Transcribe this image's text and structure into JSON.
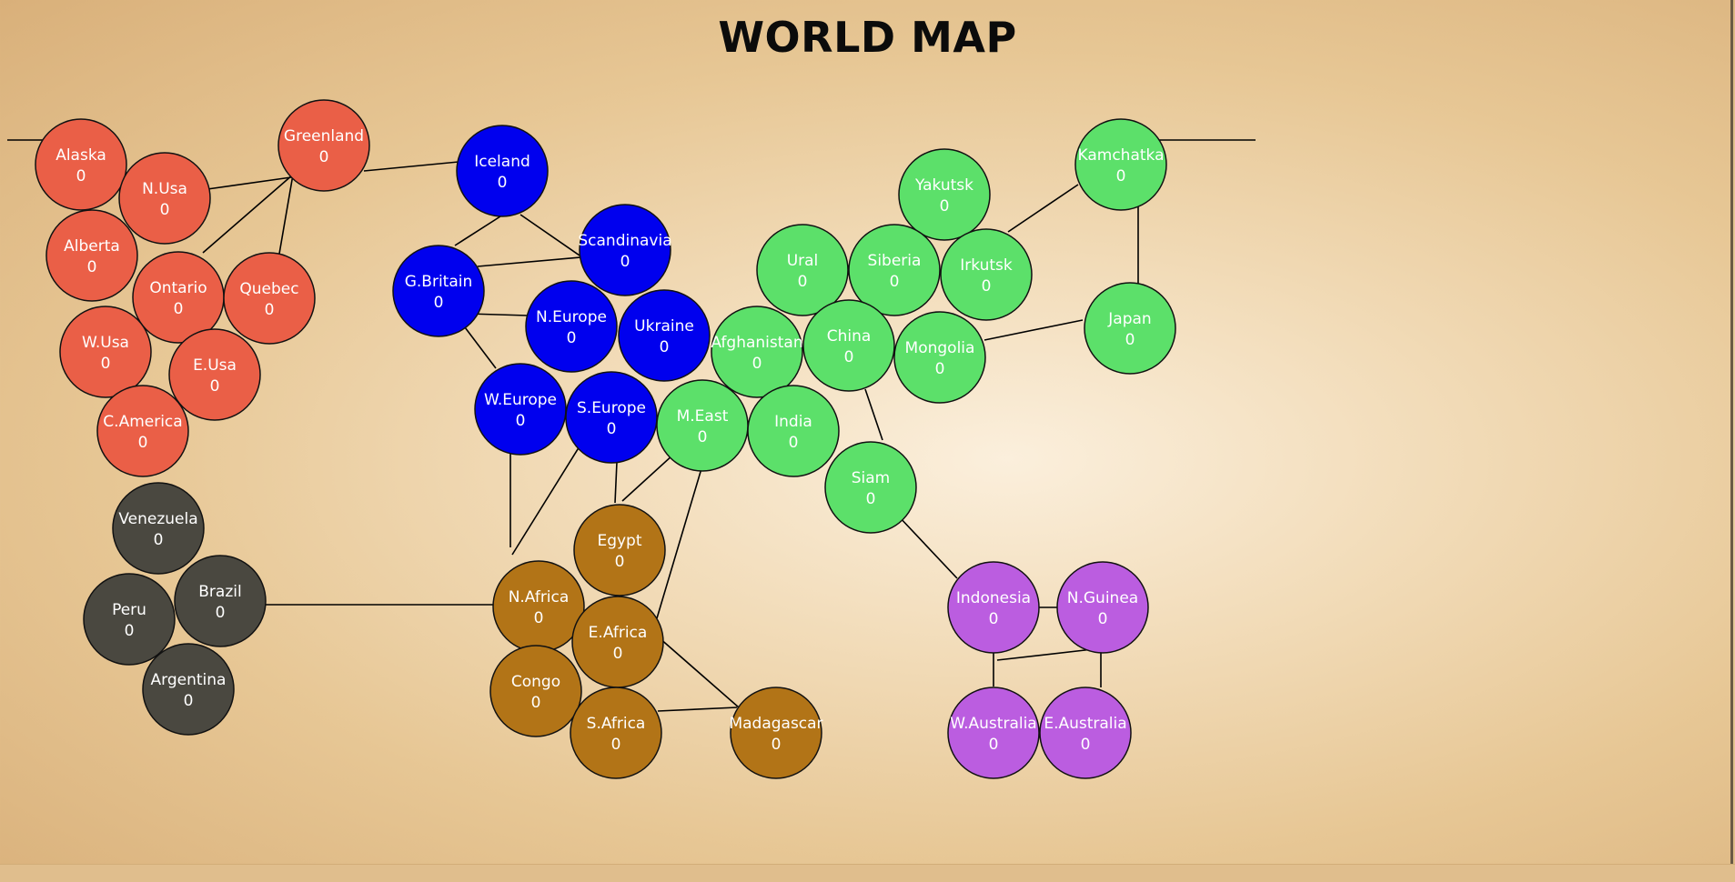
{
  "title": "WORLD MAP",
  "colors": {
    "north_america": "#ea5f47",
    "europe": "#0000ee",
    "asia": "#5ce06a",
    "south_america": "#4a4840",
    "africa": "#b27417",
    "oceania": "#bb5de0",
    "connection": "#000000",
    "label": "#ffffff"
  },
  "territories": [
    {
      "name": "Alaska",
      "armies": 0,
      "continent": "north_america"
    },
    {
      "name": "N.Usa",
      "armies": 0,
      "continent": "north_america"
    },
    {
      "name": "Greenland",
      "armies": 0,
      "continent": "north_america"
    },
    {
      "name": "Alberta",
      "armies": 0,
      "continent": "north_america"
    },
    {
      "name": "Ontario",
      "armies": 0,
      "continent": "north_america"
    },
    {
      "name": "Quebec",
      "armies": 0,
      "continent": "north_america"
    },
    {
      "name": "W.Usa",
      "armies": 0,
      "continent": "north_america"
    },
    {
      "name": "E.Usa",
      "armies": 0,
      "continent": "north_america"
    },
    {
      "name": "C.America",
      "armies": 0,
      "continent": "north_america"
    },
    {
      "name": "Iceland",
      "armies": 0,
      "continent": "europe"
    },
    {
      "name": "Scandinavia",
      "armies": 0,
      "continent": "europe"
    },
    {
      "name": "G.Britain",
      "armies": 0,
      "continent": "europe"
    },
    {
      "name": "N.Europe",
      "armies": 0,
      "continent": "europe"
    },
    {
      "name": "Ukraine",
      "armies": 0,
      "continent": "europe"
    },
    {
      "name": "W.Europe",
      "armies": 0,
      "continent": "europe"
    },
    {
      "name": "S.Europe",
      "armies": 0,
      "continent": "europe"
    },
    {
      "name": "Yakutsk",
      "armies": 0,
      "continent": "asia"
    },
    {
      "name": "Kamchatka",
      "armies": 0,
      "continent": "asia"
    },
    {
      "name": "Ural",
      "armies": 0,
      "continent": "asia"
    },
    {
      "name": "Siberia",
      "armies": 0,
      "continent": "asia"
    },
    {
      "name": "Irkutsk",
      "armies": 0,
      "continent": "asia"
    },
    {
      "name": "Afghanistan",
      "armies": 0,
      "continent": "asia"
    },
    {
      "name": "China",
      "armies": 0,
      "continent": "asia"
    },
    {
      "name": "Mongolia",
      "armies": 0,
      "continent": "asia"
    },
    {
      "name": "Japan",
      "armies": 0,
      "continent": "asia"
    },
    {
      "name": "M.East",
      "armies": 0,
      "continent": "asia"
    },
    {
      "name": "India",
      "armies": 0,
      "continent": "asia"
    },
    {
      "name": "Siam",
      "armies": 0,
      "continent": "asia"
    },
    {
      "name": "Venezuela",
      "armies": 0,
      "continent": "south_america"
    },
    {
      "name": "Brazil",
      "armies": 0,
      "continent": "south_america"
    },
    {
      "name": "Peru",
      "armies": 0,
      "continent": "south_america"
    },
    {
      "name": "Argentina",
      "armies": 0,
      "continent": "south_america"
    },
    {
      "name": "Egypt",
      "armies": 0,
      "continent": "africa"
    },
    {
      "name": "N.Africa",
      "armies": 0,
      "continent": "africa"
    },
    {
      "name": "E.Africa",
      "armies": 0,
      "continent": "africa"
    },
    {
      "name": "Congo",
      "armies": 0,
      "continent": "africa"
    },
    {
      "name": "S.Africa",
      "armies": 0,
      "continent": "africa"
    },
    {
      "name": "Madagascar",
      "armies": 0,
      "continent": "africa"
    },
    {
      "name": "Indonesia",
      "armies": 0,
      "continent": "oceania"
    },
    {
      "name": "N.Guinea",
      "armies": 0,
      "continent": "oceania"
    },
    {
      "name": "W.Australia",
      "armies": 0,
      "continent": "oceania"
    },
    {
      "name": "E.Australia",
      "armies": 0,
      "continent": "oceania"
    }
  ]
}
